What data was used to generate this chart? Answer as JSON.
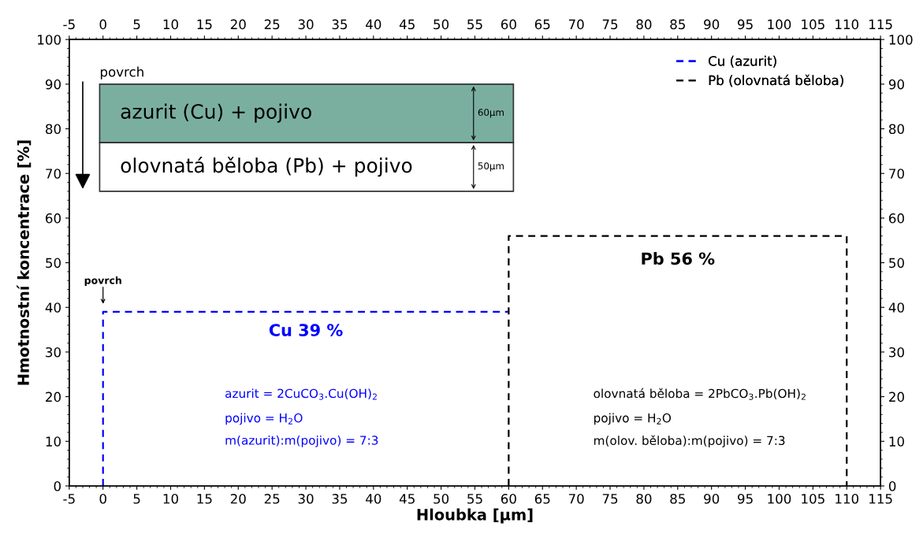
{
  "chart_data": {
    "type": "line",
    "xlabel": "Hloubka [µm]",
    "ylabel": "Hmotnostní koncentrace [%]",
    "xlim": [
      -5,
      115
    ],
    "xticks": [
      -5,
      0,
      5,
      10,
      15,
      20,
      25,
      30,
      35,
      40,
      45,
      50,
      55,
      60,
      65,
      70,
      75,
      80,
      85,
      90,
      95,
      100,
      105,
      110,
      115
    ],
    "x2lim": [
      -5,
      115
    ],
    "x2ticks": [
      -5,
      0,
      5,
      10,
      15,
      20,
      25,
      30,
      35,
      40,
      45,
      50,
      55,
      60,
      65,
      70,
      75,
      80,
      85,
      90,
      95,
      100,
      105,
      110,
      115
    ],
    "ylim": [
      0,
      100
    ],
    "yticks": [
      0,
      10,
      20,
      30,
      40,
      50,
      60,
      70,
      80,
      90,
      100
    ],
    "y2lim": [
      0,
      100
    ],
    "y2ticks": [
      0,
      10,
      20,
      30,
      40,
      50,
      60,
      70,
      80,
      90,
      100
    ],
    "line_style": "dashed",
    "marker": "none",
    "grid": false,
    "legend": "top right",
    "series": [
      {
        "name": "Cu (azurit)",
        "color": "#0000ff",
        "x": [
          0,
          0,
          60
        ],
        "values": [
          0,
          39,
          39
        ]
      },
      {
        "name": "Pb (olovnatá běloba)",
        "color": "#000000",
        "x": [
          60,
          60,
          110,
          110
        ],
        "values": [
          0,
          56,
          56,
          0
        ]
      }
    ],
    "annotations": [
      {
        "text": "Cu 39 %",
        "x": 30,
        "y": 39
      },
      {
        "text": "Pb 56 %",
        "x": 85,
        "y": 56
      },
      {
        "text": "povrch",
        "x": 0,
        "y": 39
      },
      "povrch",
      "azurit (Cu) + pojivo",
      "olovnatá běloba (Pb) + pojivo",
      "60µm",
      "50µm",
      "azurit = 2CuCO$_{3}$.Cu(OH)$_{2}$",
      "pojivo = H$_{2}$O",
      "m(azurit):m(pojivo) = 7:3",
      "olovnatá běloba = 2PbCO$_{3}$.Pb(OH)$_{2}$",
      "pojivo = H$_{2}$O",
      "m(olov. běloba):m(pojivo) = 7:3"
    ]
  }
}
